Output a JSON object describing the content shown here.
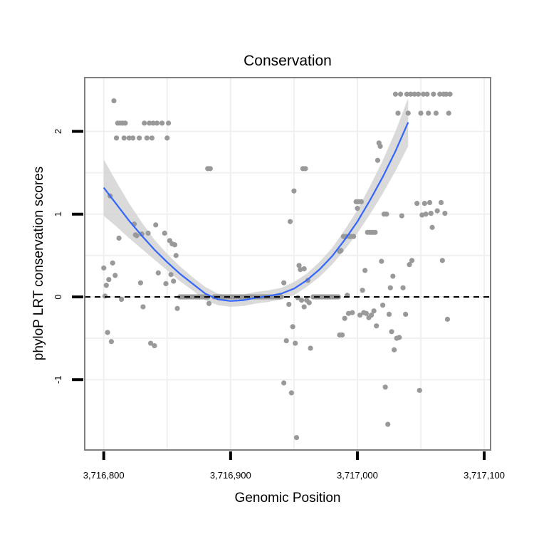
{
  "chart_data": {
    "type": "scatter",
    "title": "Conservation",
    "xlabel": "Genomic Position",
    "ylabel": "phyloP LRT conservation scores",
    "xlim": [
      3716785,
      3717105
    ],
    "ylim": [
      -1.85,
      2.65
    ],
    "x_ticks": [
      3716800,
      3716900,
      3717000,
      3717100
    ],
    "x_tick_labels": [
      "3,716,800",
      "3,716,900",
      "3,717,000",
      "3,717,100"
    ],
    "y_ticks": [
      -1,
      0,
      1,
      2
    ],
    "y_tick_labels": [
      "-1",
      "0",
      "1",
      "2"
    ],
    "grid": true,
    "reference_line": {
      "y": 0,
      "style": "dashed"
    },
    "colors": {
      "points": "#999999",
      "smooth_line": "#3366ff",
      "confidence_band": "#d3d3d3",
      "panel_border": "#808080",
      "grid": "#f0f0f0"
    },
    "points": [
      [
        3716800,
        0.35
      ],
      [
        3716801,
        0.01
      ],
      [
        3716802,
        0.14
      ],
      [
        3716803,
        -0.43
      ],
      [
        3716804,
        0.21
      ],
      [
        3716805,
        1.22
      ],
      [
        3716806,
        -0.54
      ],
      [
        3716807,
        0.41
      ],
      [
        3716808,
        2.37
      ],
      [
        3716809,
        0.26
      ],
      [
        3716810,
        1.92
      ],
      [
        3716811,
        2.1
      ],
      [
        3716812,
        0.71
      ],
      [
        3716813,
        2.1
      ],
      [
        3716814,
        -0.03
      ],
      [
        3716815,
        2.1
      ],
      [
        3716816,
        1.92
      ],
      [
        3716817,
        2.1
      ],
      [
        3716820,
        1.92
      ],
      [
        3716823,
        1.92
      ],
      [
        3716824,
        0.88
      ],
      [
        3716825,
        0.75
      ],
      [
        3716826,
        0.74
      ],
      [
        3716828,
        1.92
      ],
      [
        3716829,
        0.17
      ],
      [
        3716830,
        0.76
      ],
      [
        3716831,
        -0.12
      ],
      [
        3716832,
        2.1
      ],
      [
        3716834,
        1.92
      ],
      [
        3716835,
        0.77
      ],
      [
        3716836,
        2.1
      ],
      [
        3716837,
        -0.56
      ],
      [
        3716838,
        1.92
      ],
      [
        3716839,
        2.1
      ],
      [
        3716840,
        -0.59
      ],
      [
        3716841,
        0.87
      ],
      [
        3716842,
        2.1
      ],
      [
        3716843,
        0.29
      ],
      [
        3716846,
        2.1
      ],
      [
        3716848,
        0.77
      ],
      [
        3716849,
        0.16
      ],
      [
        3716850,
        1.92
      ],
      [
        3716851,
        2.1
      ],
      [
        3716852,
        0.68
      ],
      [
        3716853,
        0.27
      ],
      [
        3716854,
        0.64
      ],
      [
        3716855,
        0.19
      ],
      [
        3716856,
        0.63
      ],
      [
        3716857,
        0.5
      ],
      [
        3716858,
        -0.14
      ],
      [
        3716882,
        1.55
      ],
      [
        3716883,
        -0.08
      ],
      [
        3716884,
        1.55
      ],
      [
        3716942,
        0.17
      ],
      [
        3716942,
        -1.04
      ],
      [
        3716944,
        -0.53
      ],
      [
        3716946,
        -0.09
      ],
      [
        3716947,
        0.91
      ],
      [
        3716948,
        -1.16
      ],
      [
        3716949,
        -0.36
      ],
      [
        3716950,
        1.28
      ],
      [
        3716951,
        -0.56
      ],
      [
        3716952,
        -1.7
      ],
      [
        3716953,
        -0.01
      ],
      [
        3716954,
        0.38
      ],
      [
        3716955,
        0.33
      ],
      [
        3716956,
        -0.04
      ],
      [
        3716957,
        1.55
      ],
      [
        3716958,
        0.34
      ],
      [
        3716958,
        -0.12
      ],
      [
        3716959,
        1.55
      ],
      [
        3716960,
        -0.04
      ],
      [
        3716961,
        0.2
      ],
      [
        3716962,
        -0.07
      ],
      [
        3716963,
        -0.62
      ],
      [
        3716986,
        0.55
      ],
      [
        3716986,
        -0.46
      ],
      [
        3716987,
        0.56
      ],
      [
        3716988,
        -0.46
      ],
      [
        3716989,
        0.73
      ],
      [
        3716990,
        -0.26
      ],
      [
        3716991,
        0.73
      ],
      [
        3716992,
        0.02
      ],
      [
        3716993,
        -0.2
      ],
      [
        3716994,
        0.73
      ],
      [
        3716995,
        0.73
      ],
      [
        3716996,
        -0.19
      ],
      [
        3716997,
        0.73
      ],
      [
        3716999,
        1.15
      ],
      [
        3717000,
        1.07
      ],
      [
        3717001,
        1.15
      ],
      [
        3717002,
        -0.22
      ],
      [
        3717003,
        1.15
      ],
      [
        3717004,
        0.08
      ],
      [
        3717005,
        -0.19
      ],
      [
        3717006,
        0.32
      ],
      [
        3717007,
        -0.2
      ],
      [
        3717008,
        0.78
      ],
      [
        3717009,
        -0.25
      ],
      [
        3717010,
        0.78
      ],
      [
        3717011,
        -0.22
      ],
      [
        3717012,
        0.78
      ],
      [
        3717013,
        -0.17
      ],
      [
        3717014,
        0.78
      ],
      [
        3717015,
        -0.35
      ],
      [
        3717016,
        1.65
      ],
      [
        3717017,
        1.86
      ],
      [
        3717018,
        1.82
      ],
      [
        3717019,
        0.43
      ],
      [
        3717020,
        -0.1
      ],
      [
        3717021,
        1.0
      ],
      [
        3717022,
        -1.09
      ],
      [
        3717023,
        1.0
      ],
      [
        3717024,
        -1.54
      ],
      [
        3717025,
        -0.21
      ],
      [
        3717026,
        0.11
      ],
      [
        3717027,
        -0.42
      ],
      [
        3717028,
        0.25
      ],
      [
        3717029,
        -0.64
      ],
      [
        3717030,
        2.45
      ],
      [
        3717031,
        -0.5
      ],
      [
        3717032,
        2.22
      ],
      [
        3717033,
        -0.49
      ],
      [
        3717034,
        2.45
      ],
      [
        3717035,
        0.98
      ],
      [
        3717036,
        0.11
      ],
      [
        3717038,
        -0.21
      ],
      [
        3717039,
        2.45
      ],
      [
        3717040,
        2.22
      ],
      [
        3717041,
        0.39
      ],
      [
        3717042,
        2.45
      ],
      [
        3717043,
        0.44
      ],
      [
        3717045,
        2.45
      ],
      [
        3717047,
        1.13
      ],
      [
        3717048,
        2.45
      ],
      [
        3717049,
        -1.13
      ],
      [
        3717050,
        2.22
      ],
      [
        3717051,
        0.99
      ],
      [
        3717052,
        2.45
      ],
      [
        3717053,
        1.13
      ],
      [
        3717054,
        1.0
      ],
      [
        3717055,
        2.45
      ],
      [
        3717056,
        2.22
      ],
      [
        3717057,
        1.14
      ],
      [
        3717058,
        1.01
      ],
      [
        3717059,
        0.84
      ],
      [
        3717060,
        2.45
      ],
      [
        3717062,
        2.22
      ],
      [
        3717063,
        1.04
      ],
      [
        3717065,
        2.45
      ],
      [
        3717066,
        1.14
      ],
      [
        3717067,
        0.44
      ],
      [
        3717068,
        2.45
      ],
      [
        3717069,
        1.01
      ],
      [
        3717070,
        2.45
      ],
      [
        3717071,
        -0.27
      ],
      [
        3717072,
        2.22
      ],
      [
        3717073,
        2.45
      ]
    ],
    "zero_cluster_ranges": [
      [
        3716860,
        3716882
      ],
      [
        3716887,
        3716940
      ],
      [
        3716965,
        3716985
      ]
    ],
    "smooth_line": [
      [
        3716800,
        1.32
      ],
      [
        3716810,
        1.12
      ],
      [
        3716820,
        0.92
      ],
      [
        3716830,
        0.74
      ],
      [
        3716840,
        0.57
      ],
      [
        3716850,
        0.42
      ],
      [
        3716860,
        0.28
      ],
      [
        3716870,
        0.16
      ],
      [
        3716880,
        0.04
      ],
      [
        3716890,
        -0.03
      ],
      [
        3716900,
        -0.05
      ],
      [
        3716910,
        -0.04
      ],
      [
        3716920,
        -0.01
      ],
      [
        3716930,
        0.01
      ],
      [
        3716940,
        0.04
      ],
      [
        3716950,
        0.1
      ],
      [
        3716960,
        0.2
      ],
      [
        3716970,
        0.33
      ],
      [
        3716980,
        0.49
      ],
      [
        3716990,
        0.69
      ],
      [
        3717000,
        0.91
      ],
      [
        3717010,
        1.17
      ],
      [
        3717020,
        1.45
      ],
      [
        3717030,
        1.76
      ],
      [
        3717040,
        2.11
      ]
    ],
    "band_halfwidth": [
      0.34,
      0.27,
      0.21,
      0.16,
      0.12,
      0.1,
      0.09,
      0.08,
      0.08,
      0.07,
      0.07,
      0.07,
      0.07,
      0.07,
      0.07,
      0.08,
      0.08,
      0.09,
      0.1,
      0.12,
      0.14,
      0.17,
      0.2,
      0.24,
      0.29
    ]
  }
}
